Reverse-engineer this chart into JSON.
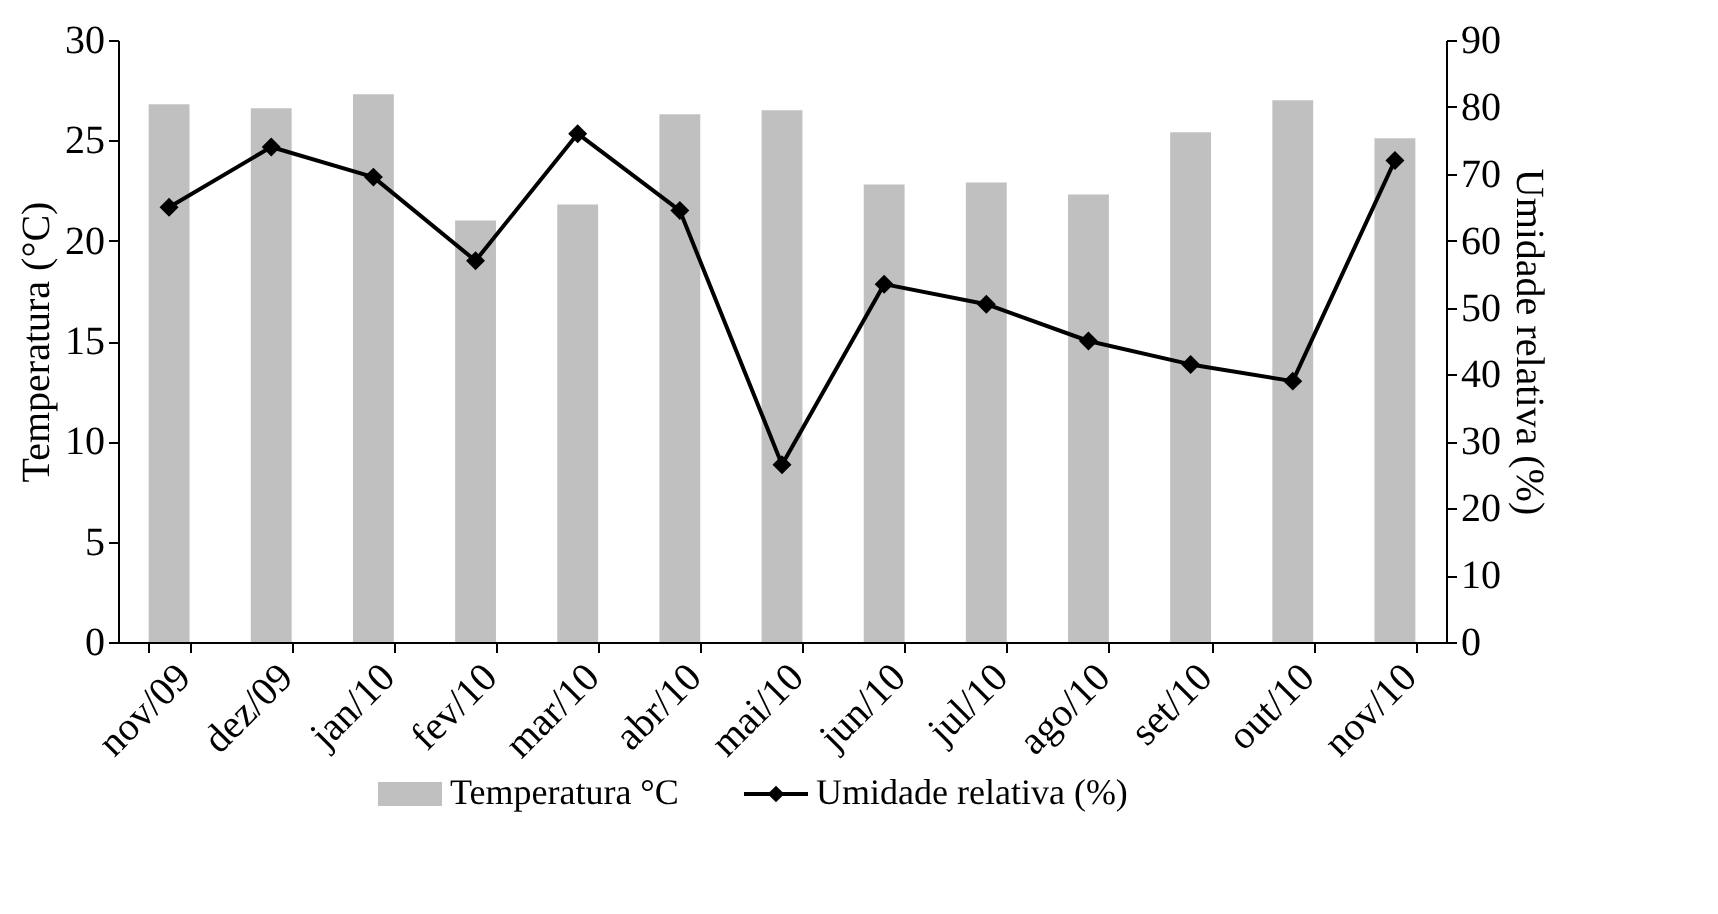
{
  "chart_data": {
    "type": "bar",
    "categories": [
      "nov/09",
      "dez/09",
      "jan/10",
      "fev/10",
      "mar/10",
      "abr/10",
      "mai/10",
      "jun/10",
      "jul/10",
      "ago/10",
      "set/10",
      "out/10",
      "nov/10"
    ],
    "series": [
      {
        "name": "Temperatura °C",
        "color": "#c0c0c0",
        "values": [
          26.8,
          26.6,
          27.3,
          21.0,
          21.8,
          26.3,
          26.5,
          22.8,
          22.9,
          22.3,
          25.4,
          27.0,
          25.1
        ]
      },
      {
        "name": "Umidade relativa (%)",
        "type": "line",
        "axis": "y2",
        "color": "#000000",
        "marker": "diamond",
        "values": [
          65,
          74,
          69.5,
          57,
          76,
          64.5,
          26.5,
          53.5,
          50.5,
          45,
          41.5,
          39,
          72
        ]
      }
    ],
    "ylabel": "Temperatura (°C)",
    "y2label": "Umidade relativa (%)",
    "ylim": [
      0,
      30
    ],
    "yticks": [
      0,
      5,
      10,
      15,
      20,
      25,
      30
    ],
    "y2lim": [
      0,
      90
    ],
    "y2ticks": [
      0,
      10,
      20,
      30,
      40,
      50,
      60,
      70,
      80,
      90
    ],
    "legend": "bottom",
    "grid": false
  }
}
